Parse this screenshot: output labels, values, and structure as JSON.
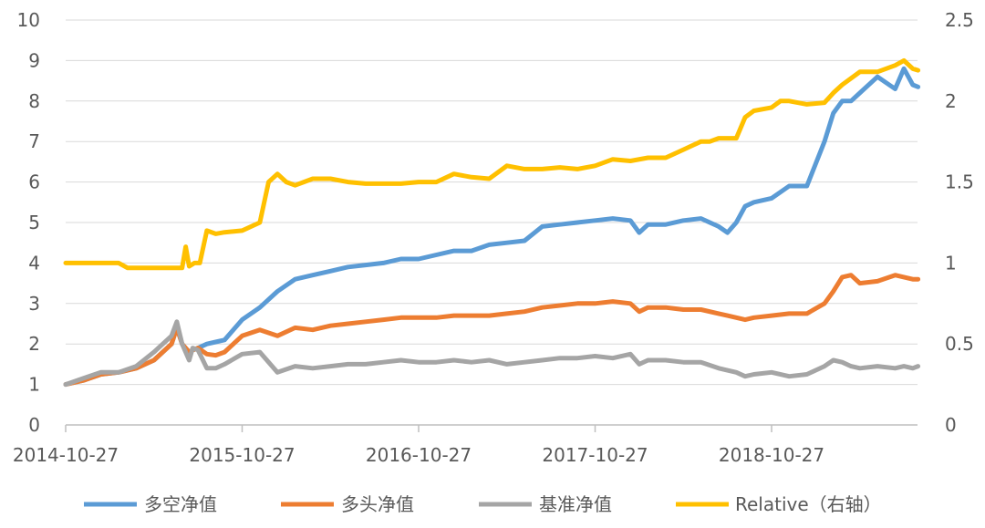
{
  "chart_data": {
    "type": "line",
    "title": "",
    "xlabel": "",
    "ylabel": "",
    "x_tick_labels": [
      "2014-10-27",
      "2015-10-27",
      "2016-10-27",
      "2017-10-27",
      "2018-10-27"
    ],
    "x_tick_positions_years": [
      0,
      1,
      2,
      3,
      4
    ],
    "x_range_years": [
      0,
      4.83
    ],
    "ylim_left": [
      0,
      10
    ],
    "y_ticks_left": [
      0,
      1,
      2,
      3,
      4,
      5,
      6,
      7,
      8,
      9,
      10
    ],
    "ylim_right": [
      0,
      2.5
    ],
    "y_ticks_right": [
      0,
      0.5,
      1,
      1.5,
      2,
      2.5
    ],
    "grid": "horizontal",
    "legend_position": "bottom",
    "series": [
      {
        "name": "多空净值",
        "axis": "left",
        "color": "#5b9bd5",
        "x": [
          0,
          0.1,
          0.2,
          0.3,
          0.4,
          0.5,
          0.6,
          0.63,
          0.66,
          0.7,
          0.72,
          0.75,
          0.8,
          0.85,
          0.9,
          1.0,
          1.1,
          1.2,
          1.3,
          1.4,
          1.5,
          1.6,
          1.7,
          1.8,
          1.9,
          2.0,
          2.1,
          2.2,
          2.3,
          2.4,
          2.5,
          2.6,
          2.7,
          2.8,
          2.9,
          3.0,
          3.1,
          3.2,
          3.25,
          3.3,
          3.4,
          3.5,
          3.6,
          3.7,
          3.75,
          3.8,
          3.85,
          3.9,
          4.0,
          4.1,
          4.2,
          4.3,
          4.35,
          4.4,
          4.45,
          4.5,
          4.6,
          4.7,
          4.75,
          4.8,
          4.83
        ],
        "values": [
          1.0,
          1.1,
          1.25,
          1.3,
          1.4,
          1.6,
          2.0,
          2.4,
          2.0,
          1.8,
          1.85,
          1.9,
          2.0,
          2.05,
          2.1,
          2.6,
          2.9,
          3.3,
          3.6,
          3.7,
          3.8,
          3.9,
          3.95,
          4.0,
          4.1,
          4.1,
          4.2,
          4.3,
          4.3,
          4.45,
          4.5,
          4.55,
          4.9,
          4.95,
          5.0,
          5.05,
          5.1,
          5.05,
          4.75,
          4.95,
          4.95,
          5.05,
          5.1,
          4.9,
          4.75,
          5.0,
          5.4,
          5.5,
          5.6,
          5.9,
          5.9,
          7.0,
          7.7,
          8.0,
          8.0,
          8.2,
          8.6,
          8.3,
          8.8,
          8.4,
          8.35
        ]
      },
      {
        "name": "多头净值",
        "axis": "left",
        "color": "#ed7d31",
        "x": [
          0,
          0.1,
          0.2,
          0.3,
          0.4,
          0.5,
          0.6,
          0.63,
          0.66,
          0.7,
          0.72,
          0.75,
          0.8,
          0.85,
          0.9,
          1.0,
          1.1,
          1.2,
          1.3,
          1.4,
          1.5,
          1.6,
          1.7,
          1.8,
          1.9,
          2.0,
          2.1,
          2.2,
          2.3,
          2.4,
          2.5,
          2.6,
          2.7,
          2.8,
          2.9,
          3.0,
          3.1,
          3.2,
          3.25,
          3.3,
          3.4,
          3.5,
          3.6,
          3.7,
          3.75,
          3.8,
          3.85,
          3.9,
          4.0,
          4.1,
          4.2,
          4.3,
          4.35,
          4.4,
          4.45,
          4.5,
          4.6,
          4.7,
          4.75,
          4.8,
          4.83
        ],
        "values": [
          1.0,
          1.1,
          1.25,
          1.3,
          1.4,
          1.6,
          2.0,
          2.4,
          2.0,
          1.8,
          1.85,
          1.9,
          1.75,
          1.72,
          1.8,
          2.2,
          2.35,
          2.2,
          2.4,
          2.35,
          2.45,
          2.5,
          2.55,
          2.6,
          2.65,
          2.65,
          2.65,
          2.7,
          2.7,
          2.7,
          2.75,
          2.8,
          2.9,
          2.95,
          3.0,
          3.0,
          3.05,
          3.0,
          2.8,
          2.9,
          2.9,
          2.85,
          2.85,
          2.75,
          2.7,
          2.65,
          2.6,
          2.65,
          2.7,
          2.75,
          2.75,
          3.0,
          3.3,
          3.65,
          3.7,
          3.5,
          3.55,
          3.7,
          3.65,
          3.6,
          3.6
        ]
      },
      {
        "name": "基准净值",
        "axis": "left",
        "color": "#a5a5a5",
        "x": [
          0,
          0.1,
          0.2,
          0.3,
          0.4,
          0.5,
          0.6,
          0.63,
          0.66,
          0.7,
          0.72,
          0.75,
          0.8,
          0.85,
          0.9,
          1.0,
          1.1,
          1.2,
          1.3,
          1.4,
          1.5,
          1.6,
          1.7,
          1.8,
          1.9,
          2.0,
          2.1,
          2.2,
          2.3,
          2.4,
          2.5,
          2.6,
          2.7,
          2.8,
          2.9,
          3.0,
          3.1,
          3.2,
          3.25,
          3.3,
          3.4,
          3.5,
          3.6,
          3.7,
          3.75,
          3.8,
          3.85,
          3.9,
          4.0,
          4.1,
          4.2,
          4.3,
          4.35,
          4.4,
          4.45,
          4.5,
          4.6,
          4.7,
          4.75,
          4.8,
          4.83
        ],
        "values": [
          1.0,
          1.15,
          1.3,
          1.3,
          1.45,
          1.8,
          2.2,
          2.55,
          2.0,
          1.6,
          1.9,
          1.85,
          1.4,
          1.4,
          1.5,
          1.75,
          1.8,
          1.3,
          1.45,
          1.4,
          1.45,
          1.5,
          1.5,
          1.55,
          1.6,
          1.55,
          1.55,
          1.6,
          1.55,
          1.6,
          1.5,
          1.55,
          1.6,
          1.65,
          1.65,
          1.7,
          1.65,
          1.75,
          1.5,
          1.6,
          1.6,
          1.55,
          1.55,
          1.4,
          1.35,
          1.3,
          1.2,
          1.25,
          1.3,
          1.2,
          1.25,
          1.45,
          1.6,
          1.55,
          1.45,
          1.4,
          1.45,
          1.4,
          1.45,
          1.4,
          1.45
        ]
      },
      {
        "name": "Relative（右轴）",
        "axis": "right",
        "color": "#ffc000",
        "x": [
          0,
          0.1,
          0.2,
          0.3,
          0.35,
          0.4,
          0.5,
          0.6,
          0.66,
          0.68,
          0.7,
          0.73,
          0.76,
          0.8,
          0.85,
          0.9,
          1.0,
          1.1,
          1.15,
          1.2,
          1.25,
          1.3,
          1.4,
          1.5,
          1.6,
          1.7,
          1.8,
          1.9,
          2.0,
          2.1,
          2.2,
          2.3,
          2.4,
          2.5,
          2.6,
          2.7,
          2.8,
          2.9,
          3.0,
          3.1,
          3.2,
          3.3,
          3.4,
          3.5,
          3.6,
          3.65,
          3.7,
          3.8,
          3.85,
          3.9,
          4.0,
          4.05,
          4.1,
          4.2,
          4.3,
          4.35,
          4.4,
          4.5,
          4.6,
          4.7,
          4.75,
          4.8,
          4.83
        ],
        "values": [
          1.0,
          1.0,
          1.0,
          1.0,
          0.97,
          0.97,
          0.97,
          0.97,
          0.97,
          1.1,
          0.98,
          1.0,
          1.0,
          1.2,
          1.18,
          1.19,
          1.2,
          1.25,
          1.5,
          1.55,
          1.5,
          1.48,
          1.52,
          1.52,
          1.5,
          1.49,
          1.49,
          1.49,
          1.5,
          1.5,
          1.55,
          1.53,
          1.52,
          1.6,
          1.58,
          1.58,
          1.59,
          1.58,
          1.6,
          1.64,
          1.63,
          1.65,
          1.65,
          1.7,
          1.75,
          1.75,
          1.77,
          1.77,
          1.9,
          1.94,
          1.96,
          2.0,
          2.0,
          1.98,
          1.99,
          2.05,
          2.1,
          2.18,
          2.18,
          2.22,
          2.25,
          2.2,
          2.19
        ]
      }
    ]
  }
}
